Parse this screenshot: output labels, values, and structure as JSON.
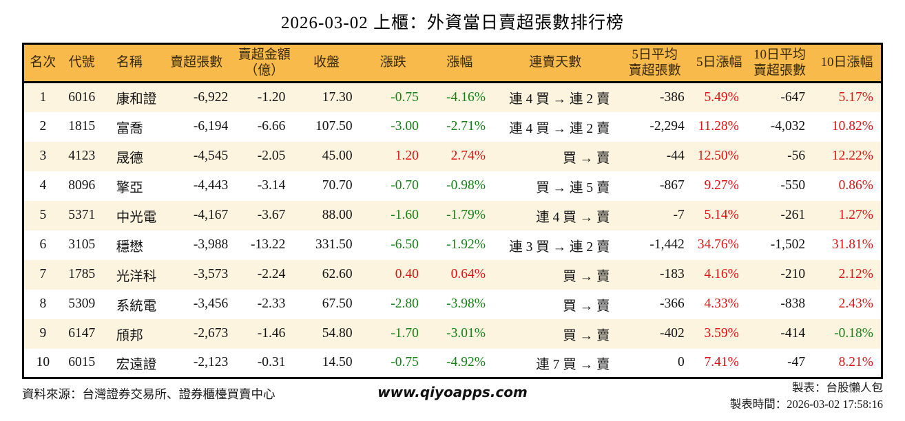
{
  "title": "2026-03-02 上櫃：外資當日賣超張數排行榜",
  "colors": {
    "header_bg": "#F7BA4B",
    "row_alt_bg": "#FCF4DF",
    "row_bg": "#FFFFFF",
    "up_red": "#DE1212",
    "down_green": "#178117",
    "header_text": "#3A2A08",
    "body_text": "#141414",
    "border": "#000000"
  },
  "table": {
    "columns": [
      {
        "key": "rank",
        "label": "名次"
      },
      {
        "key": "code",
        "label": "代號"
      },
      {
        "key": "name",
        "label": "名稱"
      },
      {
        "key": "sell_volume",
        "label": "賣超張數"
      },
      {
        "key": "sell_amount",
        "label": "賣超金額\n（億）"
      },
      {
        "key": "close",
        "label": "收盤"
      },
      {
        "key": "change",
        "label": "漲跌"
      },
      {
        "key": "change_pct",
        "label": "漲幅"
      },
      {
        "key": "streak",
        "label": "連賣天數"
      },
      {
        "key": "avg5_sell",
        "label": "5日平均\n賣超張數"
      },
      {
        "key": "pct5",
        "label": "5日漲幅"
      },
      {
        "key": "avg10_sell",
        "label": "10日平均\n賣超張數"
      },
      {
        "key": "pct10",
        "label": "10日漲幅"
      }
    ],
    "rows": [
      {
        "cells": [
          {
            "t": "1",
            "c": "k"
          },
          {
            "t": "6016",
            "c": "k"
          },
          {
            "t": "康和證",
            "c": "k"
          },
          {
            "t": "-6,922",
            "c": "k"
          },
          {
            "t": "-1.20",
            "c": "k"
          },
          {
            "t": "17.30",
            "c": "k"
          },
          {
            "t": "-0.75",
            "c": "g"
          },
          {
            "t": "-4.16%",
            "c": "g"
          },
          {
            "t": "連 4 買 → 連 2 賣",
            "c": "k"
          },
          {
            "t": "-386",
            "c": "k"
          },
          {
            "t": "5.49%",
            "c": "r"
          },
          {
            "t": "-647",
            "c": "k"
          },
          {
            "t": "5.17%",
            "c": "r"
          }
        ]
      },
      {
        "cells": [
          {
            "t": "2",
            "c": "k"
          },
          {
            "t": "1815",
            "c": "k"
          },
          {
            "t": "富喬",
            "c": "k"
          },
          {
            "t": "-6,194",
            "c": "k"
          },
          {
            "t": "-6.66",
            "c": "k"
          },
          {
            "t": "107.50",
            "c": "k"
          },
          {
            "t": "-3.00",
            "c": "g"
          },
          {
            "t": "-2.71%",
            "c": "g"
          },
          {
            "t": "連 4 買 → 連 2 賣",
            "c": "k"
          },
          {
            "t": "-2,294",
            "c": "k"
          },
          {
            "t": "11.28%",
            "c": "r"
          },
          {
            "t": "-4,032",
            "c": "k"
          },
          {
            "t": "10.82%",
            "c": "r"
          }
        ]
      },
      {
        "cells": [
          {
            "t": "3",
            "c": "k"
          },
          {
            "t": "4123",
            "c": "k"
          },
          {
            "t": "晟德",
            "c": "k"
          },
          {
            "t": "-4,545",
            "c": "k"
          },
          {
            "t": "-2.05",
            "c": "k"
          },
          {
            "t": "45.00",
            "c": "k"
          },
          {
            "t": "1.20",
            "c": "r"
          },
          {
            "t": "2.74%",
            "c": "r"
          },
          {
            "t": "買 → 賣",
            "c": "k"
          },
          {
            "t": "-44",
            "c": "k"
          },
          {
            "t": "12.50%",
            "c": "r"
          },
          {
            "t": "-56",
            "c": "k"
          },
          {
            "t": "12.22%",
            "c": "r"
          }
        ]
      },
      {
        "cells": [
          {
            "t": "4",
            "c": "k"
          },
          {
            "t": "8096",
            "c": "k"
          },
          {
            "t": "擎亞",
            "c": "k"
          },
          {
            "t": "-4,443",
            "c": "k"
          },
          {
            "t": "-3.14",
            "c": "k"
          },
          {
            "t": "70.70",
            "c": "k"
          },
          {
            "t": "-0.70",
            "c": "g"
          },
          {
            "t": "-0.98%",
            "c": "g"
          },
          {
            "t": "買 → 連 5 賣",
            "c": "k"
          },
          {
            "t": "-867",
            "c": "k"
          },
          {
            "t": "9.27%",
            "c": "r"
          },
          {
            "t": "-550",
            "c": "k"
          },
          {
            "t": "0.86%",
            "c": "r"
          }
        ]
      },
      {
        "cells": [
          {
            "t": "5",
            "c": "k"
          },
          {
            "t": "5371",
            "c": "k"
          },
          {
            "t": "中光電",
            "c": "k"
          },
          {
            "t": "-4,167",
            "c": "k"
          },
          {
            "t": "-3.67",
            "c": "k"
          },
          {
            "t": "88.00",
            "c": "k"
          },
          {
            "t": "-1.60",
            "c": "g"
          },
          {
            "t": "-1.79%",
            "c": "g"
          },
          {
            "t": "連 4 買 → 賣",
            "c": "k"
          },
          {
            "t": "-7",
            "c": "k"
          },
          {
            "t": "5.14%",
            "c": "r"
          },
          {
            "t": "-261",
            "c": "k"
          },
          {
            "t": "1.27%",
            "c": "r"
          }
        ]
      },
      {
        "cells": [
          {
            "t": "6",
            "c": "k"
          },
          {
            "t": "3105",
            "c": "k"
          },
          {
            "t": "穩懋",
            "c": "k"
          },
          {
            "t": "-3,988",
            "c": "k"
          },
          {
            "t": "-13.22",
            "c": "k"
          },
          {
            "t": "331.50",
            "c": "k"
          },
          {
            "t": "-6.50",
            "c": "g"
          },
          {
            "t": "-1.92%",
            "c": "g"
          },
          {
            "t": "連 3 買 → 連 2 賣",
            "c": "k"
          },
          {
            "t": "-1,442",
            "c": "k"
          },
          {
            "t": "34.76%",
            "c": "r"
          },
          {
            "t": "-1,502",
            "c": "k"
          },
          {
            "t": "31.81%",
            "c": "r"
          }
        ]
      },
      {
        "cells": [
          {
            "t": "7",
            "c": "k"
          },
          {
            "t": "1785",
            "c": "k"
          },
          {
            "t": "光洋科",
            "c": "k"
          },
          {
            "t": "-3,573",
            "c": "k"
          },
          {
            "t": "-2.24",
            "c": "k"
          },
          {
            "t": "62.60",
            "c": "k"
          },
          {
            "t": "0.40",
            "c": "r"
          },
          {
            "t": "0.64%",
            "c": "r"
          },
          {
            "t": "買 → 賣",
            "c": "k"
          },
          {
            "t": "-183",
            "c": "k"
          },
          {
            "t": "4.16%",
            "c": "r"
          },
          {
            "t": "-210",
            "c": "k"
          },
          {
            "t": "2.12%",
            "c": "r"
          }
        ]
      },
      {
        "cells": [
          {
            "t": "8",
            "c": "k"
          },
          {
            "t": "5309",
            "c": "k"
          },
          {
            "t": "系統電",
            "c": "k"
          },
          {
            "t": "-3,456",
            "c": "k"
          },
          {
            "t": "-2.33",
            "c": "k"
          },
          {
            "t": "67.50",
            "c": "k"
          },
          {
            "t": "-2.80",
            "c": "g"
          },
          {
            "t": "-3.98%",
            "c": "g"
          },
          {
            "t": "買 → 賣",
            "c": "k"
          },
          {
            "t": "-366",
            "c": "k"
          },
          {
            "t": "4.33%",
            "c": "r"
          },
          {
            "t": "-838",
            "c": "k"
          },
          {
            "t": "2.43%",
            "c": "r"
          }
        ]
      },
      {
        "cells": [
          {
            "t": "9",
            "c": "k"
          },
          {
            "t": "6147",
            "c": "k"
          },
          {
            "t": "頎邦",
            "c": "k"
          },
          {
            "t": "-2,673",
            "c": "k"
          },
          {
            "t": "-1.46",
            "c": "k"
          },
          {
            "t": "54.80",
            "c": "k"
          },
          {
            "t": "-1.70",
            "c": "g"
          },
          {
            "t": "-3.01%",
            "c": "g"
          },
          {
            "t": "買 → 賣",
            "c": "k"
          },
          {
            "t": "-402",
            "c": "k"
          },
          {
            "t": "3.59%",
            "c": "r"
          },
          {
            "t": "-414",
            "c": "k"
          },
          {
            "t": "-0.18%",
            "c": "g"
          }
        ]
      },
      {
        "cells": [
          {
            "t": "10",
            "c": "k"
          },
          {
            "t": "6015",
            "c": "k"
          },
          {
            "t": "宏遠證",
            "c": "k"
          },
          {
            "t": "-2,123",
            "c": "k"
          },
          {
            "t": "-0.31",
            "c": "k"
          },
          {
            "t": "14.50",
            "c": "k"
          },
          {
            "t": "-0.75",
            "c": "g"
          },
          {
            "t": "-4.92%",
            "c": "g"
          },
          {
            "t": "連 7 買 → 賣",
            "c": "k"
          },
          {
            "t": "0",
            "c": "k"
          },
          {
            "t": "7.41%",
            "c": "r"
          },
          {
            "t": "-47",
            "c": "k"
          },
          {
            "t": "8.21%",
            "c": "r"
          }
        ]
      }
    ]
  },
  "footer": {
    "source": "資料來源：台灣證券交易所、證券櫃檯買賣中心",
    "website": "www.qiyoapps.com",
    "maker": "製表：台股懶人包",
    "timestamp": "製表時間：2026-03-02 17:58:16"
  }
}
